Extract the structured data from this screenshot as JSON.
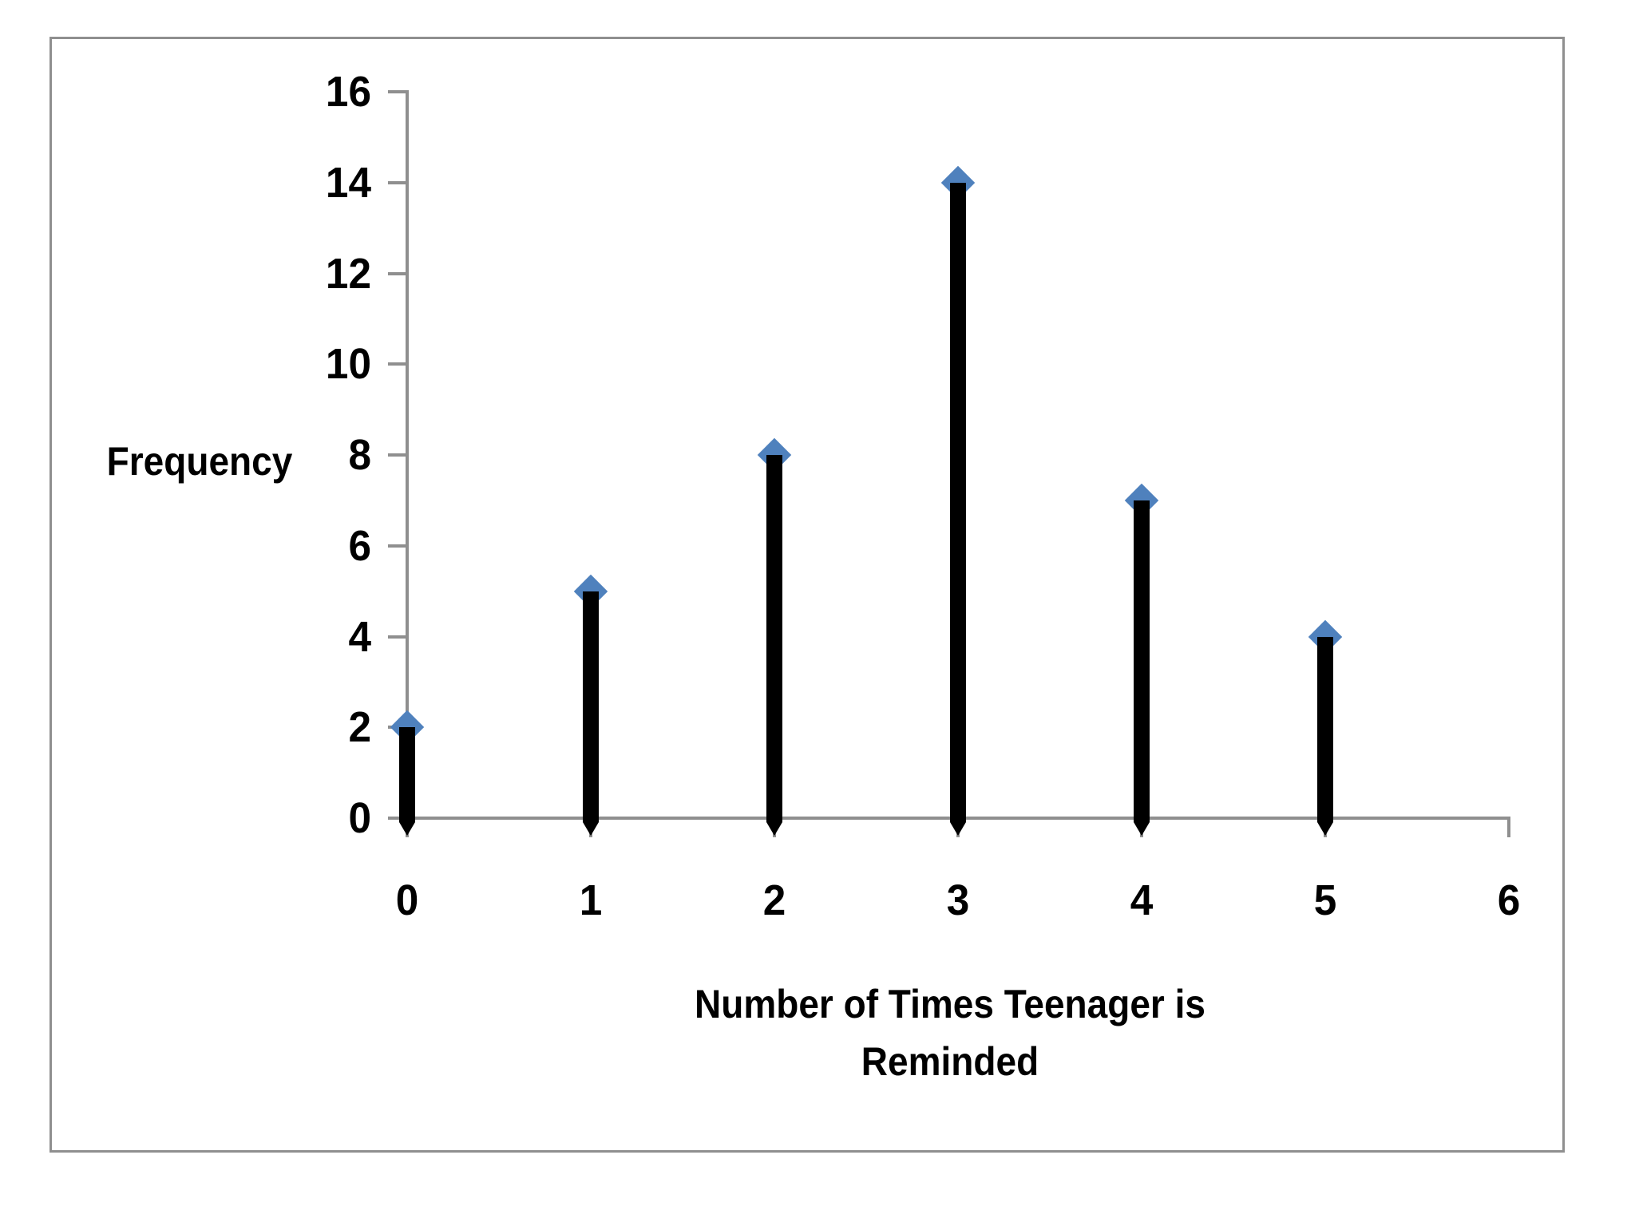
{
  "chart_data": {
    "type": "stem",
    "title": "",
    "x": [
      0,
      1,
      2,
      3,
      4,
      5
    ],
    "values": [
      2,
      5,
      8,
      14,
      7,
      4
    ],
    "xlabel": "Number of Times Teenager is Reminded",
    "xlabel_lines": [
      "Number of Times Teenager is",
      "Reminded"
    ],
    "ylabel": "Frequency",
    "xlim": [
      0,
      6
    ],
    "ylim": [
      0,
      16
    ],
    "x_ticks": [
      "0",
      "1",
      "2",
      "3",
      "4",
      "5",
      "6"
    ],
    "y_ticks": [
      "0",
      "2",
      "4",
      "6",
      "8",
      "10",
      "12",
      "14",
      "16"
    ],
    "grid": false,
    "legend": "none",
    "marker": "diamond",
    "colors": {
      "stem": "#000000",
      "marker": "#4F81BD",
      "axis": "#8F8F8F",
      "border": "#8F8F8F",
      "text": "#000000"
    }
  }
}
